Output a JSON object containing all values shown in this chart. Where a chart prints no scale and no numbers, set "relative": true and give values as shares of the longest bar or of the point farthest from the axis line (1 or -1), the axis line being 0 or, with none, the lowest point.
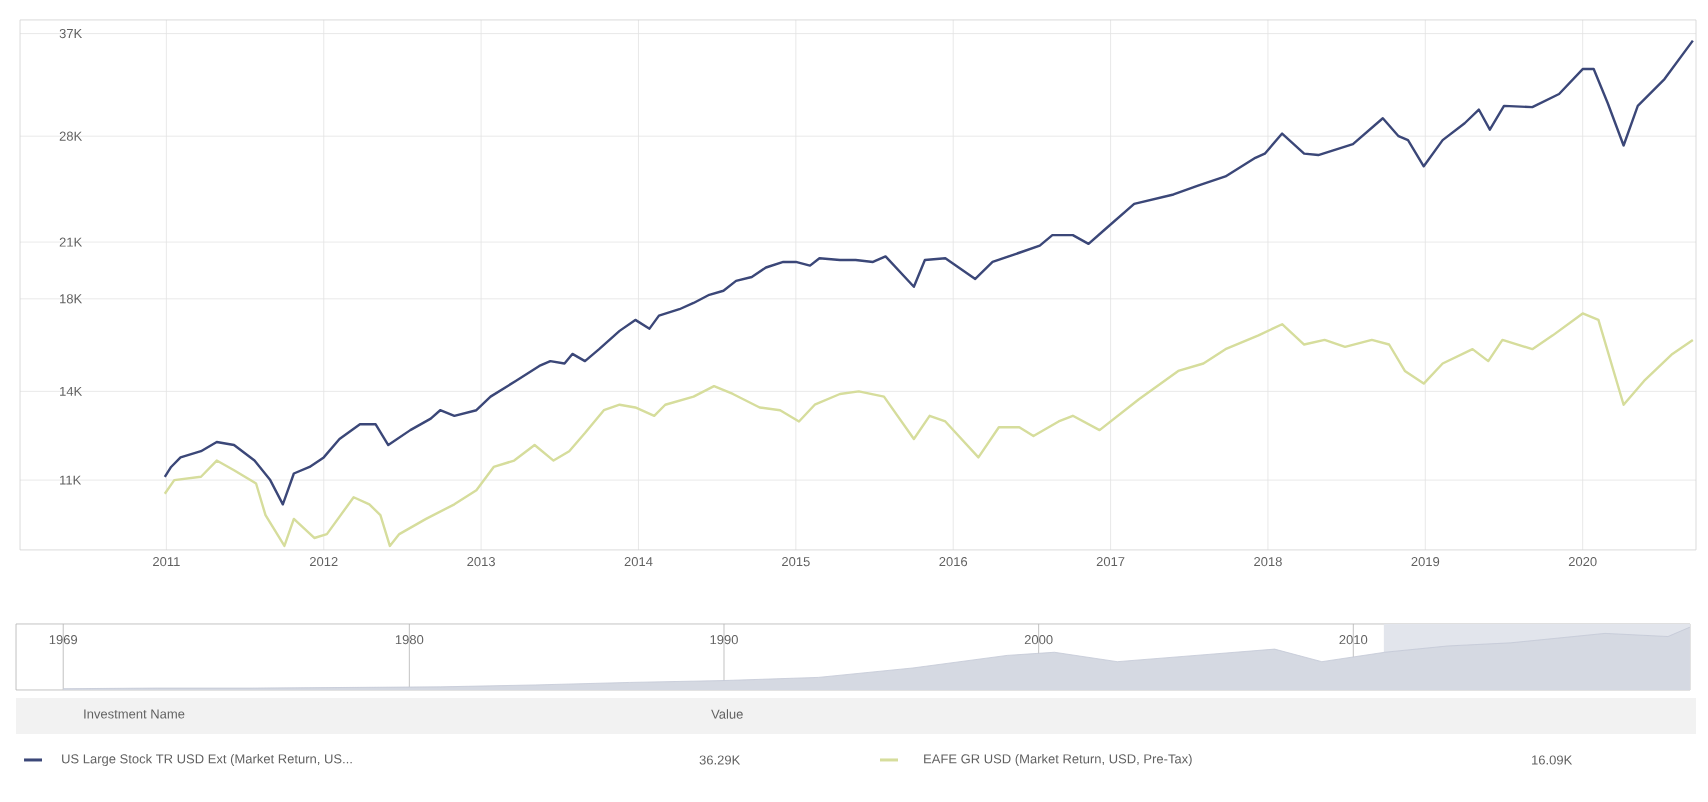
{
  "chart_data": [
    {
      "type": "line",
      "log": true,
      "grid": true,
      "legend": "bottom",
      "xlim": [
        2010.07,
        2020.72
      ],
      "xticks": [
        2011,
        2012,
        2013,
        2014,
        2015,
        2016,
        2017,
        2018,
        2019,
        2020
      ],
      "ylim": [
        9100,
        38400
      ],
      "yticks": [
        {
          "value": 11000,
          "label": "11K"
        },
        {
          "value": 14000,
          "label": "14K"
        },
        {
          "value": 18000,
          "label": "18K"
        },
        {
          "value": 21000,
          "label": "21K"
        },
        {
          "value": 28000,
          "label": "28K"
        },
        {
          "value": 37000,
          "label": "37K"
        }
      ],
      "annotations": [
        "Investment Name",
        "Value",
        "36.29K",
        "16.09K"
      ],
      "series": [
        {
          "name": "US Large Stock TR USD Ext (Market Return, US...",
          "type": "line",
          "color": "#3b4778",
          "x": [
            2010.99,
            2011.03,
            2011.09,
            2011.22,
            2011.32,
            2011.43,
            2011.56,
            2011.66,
            2011.74,
            2011.81,
            2011.91,
            2012.0,
            2012.1,
            2012.23,
            2012.33,
            2012.41,
            2012.55,
            2012.68,
            2012.74,
            2012.83,
            2012.97,
            2013.06,
            2013.22,
            2013.37,
            2013.44,
            2013.53,
            2013.58,
            2013.66,
            2013.75,
            2013.88,
            2013.98,
            2014.07,
            2014.13,
            2014.26,
            2014.35,
            2014.45,
            2014.54,
            2014.62,
            2014.72,
            2014.81,
            2014.92,
            2015.0,
            2015.09,
            2015.15,
            2015.28,
            2015.38,
            2015.49,
            2015.57,
            2015.75,
            2015.82,
            2015.95,
            2016.14,
            2016.25,
            2016.42,
            2016.55,
            2016.63,
            2016.76,
            2016.86,
            2016.96,
            2017.15,
            2017.4,
            2017.56,
            2017.73,
            2017.92,
            2017.98,
            2018.09,
            2018.23,
            2018.32,
            2018.54,
            2018.73,
            2018.83,
            2018.89,
            2018.99,
            2019.11,
            2019.25,
            2019.34,
            2019.41,
            2019.5,
            2019.68,
            2019.85,
            2020.0,
            2020.07,
            2020.16,
            2020.26,
            2020.35,
            2020.52,
            2020.7
          ],
          "values": [
            11100,
            11400,
            11700,
            11900,
            12200,
            12100,
            11600,
            11000,
            10300,
            11200,
            11400,
            11700,
            12300,
            12800,
            12800,
            12100,
            12600,
            13000,
            13300,
            13100,
            13300,
            13800,
            14400,
            15000,
            15200,
            15100,
            15500,
            15200,
            15700,
            16500,
            17000,
            16600,
            17200,
            17500,
            17800,
            18200,
            18400,
            18900,
            19100,
            19600,
            19900,
            19900,
            19700,
            20100,
            20000,
            20000,
            19900,
            20200,
            18600,
            20000,
            20100,
            19000,
            19900,
            20400,
            20800,
            21400,
            21400,
            20900,
            21700,
            23300,
            23900,
            24500,
            25100,
            26400,
            26700,
            28200,
            26700,
            26600,
            27400,
            29400,
            28000,
            27700,
            25800,
            27700,
            29000,
            30100,
            28500,
            30400,
            30300,
            31400,
            33600,
            33600,
            30600,
            27300,
            30400,
            32700,
            36300
          ]
        },
        {
          "name": "EAFE GR USD (Market Return, USD, Pre-Tax)",
          "type": "line",
          "color": "#d6dd9c",
          "x": [
            2010.99,
            2011.05,
            2011.22,
            2011.32,
            2011.43,
            2011.57,
            2011.63,
            2011.75,
            2011.81,
            2011.94,
            2012.02,
            2012.19,
            2012.29,
            2012.36,
            2012.42,
            2012.48,
            2012.65,
            2012.83,
            2012.97,
            2013.08,
            2013.21,
            2013.34,
            2013.46,
            2013.56,
            2013.66,
            2013.78,
            2013.88,
            2013.98,
            2014.1,
            2014.17,
            2014.35,
            2014.48,
            2014.6,
            2014.77,
            2014.9,
            2015.02,
            2015.12,
            2015.28,
            2015.4,
            2015.56,
            2015.75,
            2015.85,
            2015.95,
            2016.16,
            2016.29,
            2016.42,
            2016.51,
            2016.67,
            2016.76,
            2016.93,
            2017.18,
            2017.43,
            2017.59,
            2017.73,
            2017.94,
            2018.09,
            2018.23,
            2018.36,
            2018.49,
            2018.66,
            2018.77,
            2018.87,
            2018.99,
            2019.11,
            2019.3,
            2019.4,
            2019.49,
            2019.68,
            2019.81,
            2020.0,
            2020.1,
            2020.26,
            2020.39,
            2020.57,
            2020.7
          ],
          "values": [
            10600,
            11000,
            11100,
            11600,
            11300,
            10900,
            10000,
            9200,
            9900,
            9400,
            9500,
            10500,
            10300,
            10000,
            9200,
            9500,
            9900,
            10300,
            10700,
            11400,
            11600,
            12100,
            11600,
            11900,
            12500,
            13300,
            13500,
            13400,
            13100,
            13500,
            13800,
            14200,
            13900,
            13400,
            13300,
            12900,
            13500,
            13900,
            14000,
            13800,
            12300,
            13100,
            12900,
            11700,
            12700,
            12700,
            12400,
            12900,
            13100,
            12600,
            13700,
            14800,
            15100,
            15700,
            16300,
            16800,
            15900,
            16100,
            15800,
            16100,
            15900,
            14800,
            14300,
            15100,
            15700,
            15200,
            16100,
            15700,
            16300,
            17300,
            17000,
            13500,
            14400,
            15500,
            16100
          ]
        }
      ]
    },
    {
      "type": "area",
      "relative": true,
      "grid": "x",
      "color": "#c3c8d6",
      "xlim": [
        1967.5,
        2020.7
      ],
      "xticks": [
        1969,
        1980,
        1990,
        2000,
        2010
      ],
      "bands": [
        {
          "axis": "x",
          "from": 2010.97,
          "to": 2020.7,
          "color": "#e2e5ec"
        }
      ],
      "x": [
        1969,
        1972,
        1975,
        1978,
        1981,
        1984,
        1987,
        1990,
        1993,
        1996,
        1999,
        2000.5,
        2002.5,
        2005,
        2007.5,
        2009,
        2011,
        2013,
        2015,
        2018,
        2020,
        2020.7
      ],
      "values": [
        0.02,
        0.03,
        0.03,
        0.04,
        0.05,
        0.08,
        0.12,
        0.15,
        0.2,
        0.35,
        0.55,
        0.6,
        0.45,
        0.55,
        0.65,
        0.45,
        0.6,
        0.7,
        0.75,
        0.9,
        0.85,
        1
      ]
    }
  ]
}
